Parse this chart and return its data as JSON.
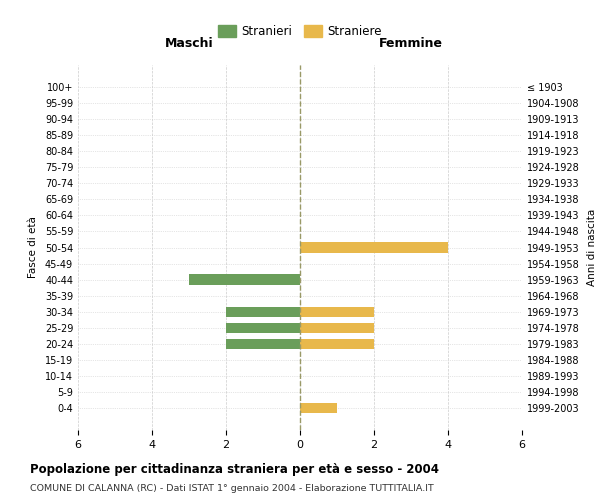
{
  "age_groups": [
    "100+",
    "95-99",
    "90-94",
    "85-89",
    "80-84",
    "75-79",
    "70-74",
    "65-69",
    "60-64",
    "55-59",
    "50-54",
    "45-49",
    "40-44",
    "35-39",
    "30-34",
    "25-29",
    "20-24",
    "15-19",
    "10-14",
    "5-9",
    "0-4"
  ],
  "birth_years": [
    "≤ 1903",
    "1904-1908",
    "1909-1913",
    "1914-1918",
    "1919-1923",
    "1924-1928",
    "1929-1933",
    "1934-1938",
    "1939-1943",
    "1944-1948",
    "1949-1953",
    "1954-1958",
    "1959-1963",
    "1964-1968",
    "1969-1973",
    "1974-1978",
    "1979-1983",
    "1984-1988",
    "1989-1993",
    "1994-1998",
    "1999-2003"
  ],
  "maschi": [
    0,
    0,
    0,
    0,
    0,
    0,
    0,
    0,
    0,
    0,
    0,
    0,
    3,
    0,
    2,
    2,
    2,
    0,
    0,
    0,
    0
  ],
  "femmine": [
    0,
    0,
    0,
    0,
    0,
    0,
    0,
    0,
    0,
    0,
    4,
    0,
    0,
    0,
    2,
    2,
    2,
    0,
    0,
    0,
    1
  ],
  "xlim": 6,
  "color_maschi": "#6a9e5a",
  "color_femmine": "#e8b84b",
  "title": "Popolazione per cittadinanza straniera per età e sesso - 2004",
  "subtitle": "COMUNE DI CALANNA (RC) - Dati ISTAT 1° gennaio 2004 - Elaborazione TUTTITALIA.IT",
  "ylabel_left": "Fasce di età",
  "ylabel_right": "Anni di nascita",
  "label_maschi": "Stranieri",
  "label_femmine": "Straniere",
  "header_maschi": "Maschi",
  "header_femmine": "Femmine",
  "bg_color": "#ffffff",
  "grid_color": "#cccccc"
}
